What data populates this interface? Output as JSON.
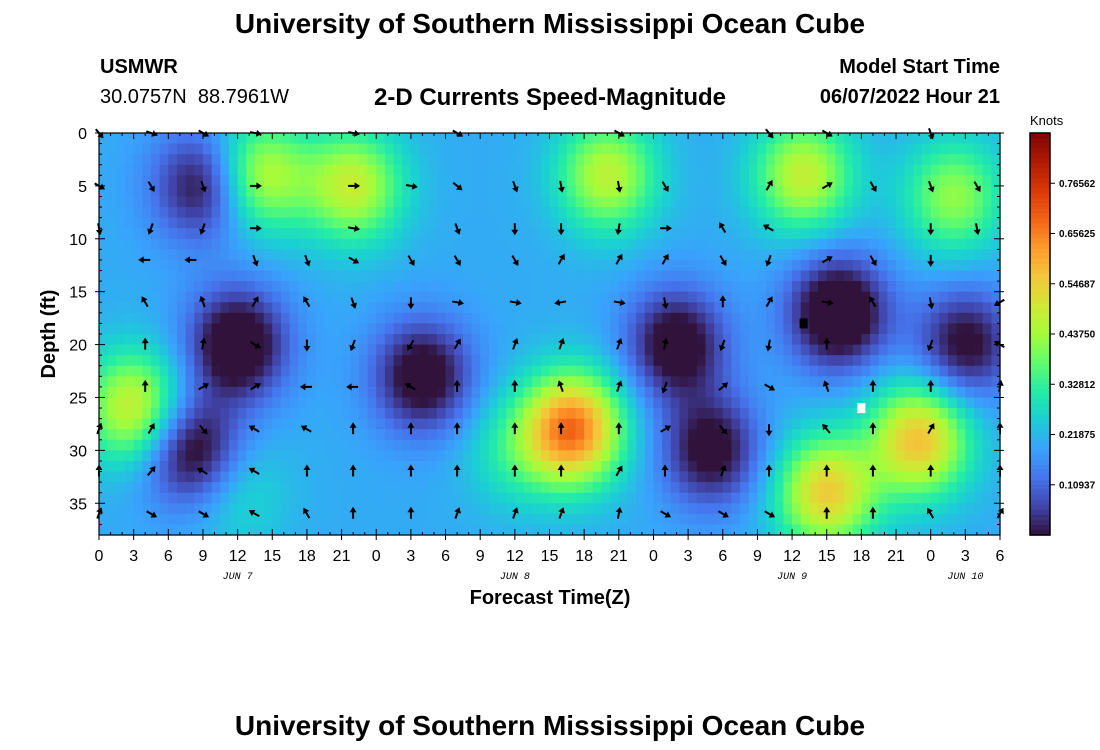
{
  "header": {
    "title": "University of Southern Mississippi Ocean Cube",
    "station": "USMWR",
    "coords": "30.0757N  88.7961W",
    "subtitle": "2-D Currents Speed-Magnitude",
    "model_label": "Model Start Time",
    "model_time": "06/07/2022 Hour 21"
  },
  "footer": {
    "title": "University of Southern Mississippi Ocean Cube"
  },
  "colors": {
    "scale": [
      "#30123b",
      "#4145ab",
      "#4675ed",
      "#39a2fc",
      "#1bcfd4",
      "#24eca6",
      "#61fc6c",
      "#a4fc3b",
      "#d1e834",
      "#f3c63a",
      "#fe9b2d",
      "#f36315",
      "#d93806",
      "#b11901",
      "#7a0402"
    ]
  },
  "chart_data": {
    "type": "heatmap",
    "title": "2-D Currents Speed-Magnitude",
    "xlabel": "Forecast Time(Z)",
    "ylabel": "Depth (ft)",
    "x_tick_labels": [
      "0",
      "3",
      "6",
      "9",
      "12",
      "15",
      "18",
      "21",
      "0",
      "3",
      "6",
      "9",
      "12",
      "15",
      "18",
      "21",
      "0",
      "3",
      "6",
      "9",
      "12",
      "15",
      "18",
      "21",
      "0",
      "3",
      "6"
    ],
    "x_date_labels": [
      {
        "label": "JUN 7",
        "tick_index": 4
      },
      {
        "label": "JUN 8",
        "tick_index": 12
      },
      {
        "label": "JUN 9",
        "tick_index": 20
      },
      {
        "label": "JUN 10",
        "tick_index": 25
      }
    ],
    "x_range_hours": [
      0,
      78
    ],
    "y_range_ft": [
      0,
      38
    ],
    "y_ticks": [
      0,
      5,
      10,
      15,
      20,
      25,
      30,
      35
    ],
    "colorbar": {
      "units": "Knots",
      "range": [
        0,
        0.875
      ],
      "tick_labels": [
        "0.76562",
        "0.65625",
        "0.54687",
        "0.43750",
        "0.32812",
        "0.21875",
        "0.10937"
      ],
      "tick_values": [
        0.765625,
        0.65625,
        0.546875,
        0.4375,
        0.328125,
        0.21875,
        0.109375
      ]
    },
    "speed_blobs": [
      {
        "hour": 3,
        "depth": 26,
        "speed": 0.5
      },
      {
        "hour": 22,
        "depth": 5,
        "speed": 0.48
      },
      {
        "hour": 14,
        "depth": 4,
        "speed": 0.47
      },
      {
        "hour": 44,
        "depth": 4,
        "speed": 0.47
      },
      {
        "hour": 41,
        "depth": 28,
        "speed": 0.67
      },
      {
        "hour": 36,
        "depth": 30,
        "speed": 0.3
      },
      {
        "hour": 61,
        "depth": 4,
        "speed": 0.48
      },
      {
        "hour": 71,
        "depth": 29,
        "speed": 0.57
      },
      {
        "hour": 63,
        "depth": 34,
        "speed": 0.55
      },
      {
        "hour": 74,
        "depth": 6,
        "speed": 0.42
      },
      {
        "hour": 12,
        "depth": 34,
        "speed": 0.28
      },
      {
        "hour": 50,
        "depth": 20,
        "speed": -0.05
      },
      {
        "hour": 12,
        "depth": 20,
        "speed": -0.08
      },
      {
        "hour": 64,
        "depth": 17,
        "speed": -0.1
      },
      {
        "hour": 8,
        "depth": 30,
        "speed": -0.05
      },
      {
        "hour": 28,
        "depth": 23,
        "speed": -0.05
      },
      {
        "hour": 53,
        "depth": 30,
        "speed": -0.03
      },
      {
        "hour": 9,
        "depth": 5,
        "speed": -0.02
      },
      {
        "hour": 75,
        "depth": 20,
        "speed": -0.02
      }
    ],
    "speed_background": 0.2,
    "arrows": [
      {
        "hour": 0,
        "depth": 0,
        "dir": 140
      },
      {
        "hour": 4.5,
        "depth": 0,
        "dir": 110
      },
      {
        "hour": 9,
        "depth": 0,
        "dir": 120
      },
      {
        "hour": 13.5,
        "depth": 0,
        "dir": 100
      },
      {
        "hour": 22,
        "depth": 0,
        "dir": 100
      },
      {
        "hour": 31,
        "depth": 0,
        "dir": 120
      },
      {
        "hour": 45,
        "depth": 0,
        "dir": 120
      },
      {
        "hour": 58,
        "depth": 0,
        "dir": 140
      },
      {
        "hour": 63,
        "depth": 0,
        "dir": 120
      },
      {
        "hour": 72,
        "depth": 0,
        "dir": 160
      },
      {
        "hour": 0,
        "depth": 5,
        "dir": 120
      },
      {
        "hour": 4.5,
        "depth": 5,
        "dir": 150
      },
      {
        "hour": 9,
        "depth": 5,
        "dir": 160
      },
      {
        "hour": 13.5,
        "depth": 5,
        "dir": 90
      },
      {
        "hour": 22,
        "depth": 5,
        "dir": 90
      },
      {
        "hour": 27,
        "depth": 5,
        "dir": 100
      },
      {
        "hour": 31,
        "depth": 5,
        "dir": 130
      },
      {
        "hour": 36,
        "depth": 5,
        "dir": 160
      },
      {
        "hour": 40,
        "depth": 5,
        "dir": 170
      },
      {
        "hour": 45,
        "depth": 5,
        "dir": 170
      },
      {
        "hour": 49,
        "depth": 5,
        "dir": 150
      },
      {
        "hour": 58,
        "depth": 5,
        "dir": 30
      },
      {
        "hour": 63,
        "depth": 5,
        "dir": 60
      },
      {
        "hour": 67,
        "depth": 5,
        "dir": 150
      },
      {
        "hour": 72,
        "depth": 5,
        "dir": 160
      },
      {
        "hour": 76,
        "depth": 5,
        "dir": 150
      },
      {
        "hour": 0,
        "depth": 9,
        "dir": 170
      },
      {
        "hour": 4.5,
        "depth": 9,
        "dir": 200
      },
      {
        "hour": 9,
        "depth": 9,
        "dir": 200
      },
      {
        "hour": 13.5,
        "depth": 9,
        "dir": 90
      },
      {
        "hour": 22,
        "depth": 9,
        "dir": 100
      },
      {
        "hour": 31,
        "depth": 9,
        "dir": 160
      },
      {
        "hour": 36,
        "depth": 9,
        "dir": 180
      },
      {
        "hour": 40,
        "depth": 9,
        "dir": 180
      },
      {
        "hour": 45,
        "depth": 9,
        "dir": 190
      },
      {
        "hour": 49,
        "depth": 9,
        "dir": 90
      },
      {
        "hour": 54,
        "depth": 9,
        "dir": 330
      },
      {
        "hour": 58,
        "depth": 9,
        "dir": 300
      },
      {
        "hour": 72,
        "depth": 9,
        "dir": 180
      },
      {
        "hour": 76,
        "depth": 9,
        "dir": 170
      },
      {
        "hour": 4,
        "depth": 12,
        "dir": 270
      },
      {
        "hour": 8,
        "depth": 12,
        "dir": 270
      },
      {
        "hour": 13.5,
        "depth": 12,
        "dir": 160
      },
      {
        "hour": 18,
        "depth": 12,
        "dir": 160
      },
      {
        "hour": 22,
        "depth": 12,
        "dir": 120
      },
      {
        "hour": 27,
        "depth": 12,
        "dir": 150
      },
      {
        "hour": 31,
        "depth": 12,
        "dir": 150
      },
      {
        "hour": 36,
        "depth": 12,
        "dir": 150
      },
      {
        "hour": 40,
        "depth": 12,
        "dir": 30
      },
      {
        "hour": 45,
        "depth": 12,
        "dir": 30
      },
      {
        "hour": 49,
        "depth": 12,
        "dir": 30
      },
      {
        "hour": 54,
        "depth": 12,
        "dir": 150
      },
      {
        "hour": 58,
        "depth": 12,
        "dir": 200
      },
      {
        "hour": 63,
        "depth": 12,
        "dir": 60
      },
      {
        "hour": 67,
        "depth": 12,
        "dir": 150
      },
      {
        "hour": 72,
        "depth": 12,
        "dir": 180
      },
      {
        "hour": 4,
        "depth": 16,
        "dir": 330
      },
      {
        "hour": 9,
        "depth": 16,
        "dir": 340
      },
      {
        "hour": 13.5,
        "depth": 16,
        "dir": 30
      },
      {
        "hour": 18,
        "depth": 16,
        "dir": 330
      },
      {
        "hour": 22,
        "depth": 16,
        "dir": 160
      },
      {
        "hour": 27,
        "depth": 16,
        "dir": 180
      },
      {
        "hour": 31,
        "depth": 16,
        "dir": 100
      },
      {
        "hour": 36,
        "depth": 16,
        "dir": 100
      },
      {
        "hour": 40,
        "depth": 16,
        "dir": 260
      },
      {
        "hour": 45,
        "depth": 16,
        "dir": 100
      },
      {
        "hour": 49,
        "depth": 16,
        "dir": 170
      },
      {
        "hour": 54,
        "depth": 16,
        "dir": 0
      },
      {
        "hour": 58,
        "depth": 16,
        "dir": 30
      },
      {
        "hour": 63,
        "depth": 16,
        "dir": 100
      },
      {
        "hour": 67,
        "depth": 16,
        "dir": 330
      },
      {
        "hour": 72,
        "depth": 16,
        "dir": 170
      },
      {
        "hour": 78,
        "depth": 16,
        "dir": 240
      },
      {
        "hour": 4,
        "depth": 20,
        "dir": 0
      },
      {
        "hour": 9,
        "depth": 20,
        "dir": 10
      },
      {
        "hour": 13.5,
        "depth": 20,
        "dir": 120
      },
      {
        "hour": 18,
        "depth": 20,
        "dir": 180
      },
      {
        "hour": 22,
        "depth": 20,
        "dir": 200
      },
      {
        "hour": 27,
        "depth": 20,
        "dir": 210
      },
      {
        "hour": 31,
        "depth": 20,
        "dir": 30
      },
      {
        "hour": 36,
        "depth": 20,
        "dir": 20
      },
      {
        "hour": 40,
        "depth": 20,
        "dir": 20
      },
      {
        "hour": 45,
        "depth": 20,
        "dir": 20
      },
      {
        "hour": 49,
        "depth": 20,
        "dir": 10
      },
      {
        "hour": 54,
        "depth": 20,
        "dir": 200
      },
      {
        "hour": 58,
        "depth": 20,
        "dir": 190
      },
      {
        "hour": 63,
        "depth": 20,
        "dir": 0
      },
      {
        "hour": 72,
        "depth": 20,
        "dir": 200
      },
      {
        "hour": 78,
        "depth": 20,
        "dir": 300
      },
      {
        "hour": 4,
        "depth": 24,
        "dir": 0
      },
      {
        "hour": 9,
        "depth": 24,
        "dir": 60
      },
      {
        "hour": 13.5,
        "depth": 24,
        "dir": 60
      },
      {
        "hour": 18,
        "depth": 24,
        "dir": 270
      },
      {
        "hour": 22,
        "depth": 24,
        "dir": 270
      },
      {
        "hour": 27,
        "depth": 24,
        "dir": 300
      },
      {
        "hour": 31,
        "depth": 24,
        "dir": 0
      },
      {
        "hour": 36,
        "depth": 24,
        "dir": 0
      },
      {
        "hour": 40,
        "depth": 24,
        "dir": 340
      },
      {
        "hour": 45,
        "depth": 24,
        "dir": 20
      },
      {
        "hour": 49,
        "depth": 24,
        "dir": 200
      },
      {
        "hour": 54,
        "depth": 24,
        "dir": 50
      },
      {
        "hour": 58,
        "depth": 24,
        "dir": 120
      },
      {
        "hour": 63,
        "depth": 24,
        "dir": 340
      },
      {
        "hour": 67,
        "depth": 24,
        "dir": 0
      },
      {
        "hour": 72,
        "depth": 24,
        "dir": 0
      },
      {
        "hour": 78,
        "depth": 24,
        "dir": 10
      },
      {
        "hour": 0,
        "depth": 28,
        "dir": 20
      },
      {
        "hour": 4.5,
        "depth": 28,
        "dir": 30
      },
      {
        "hour": 9,
        "depth": 28,
        "dir": 140
      },
      {
        "hour": 13.5,
        "depth": 28,
        "dir": 300
      },
      {
        "hour": 18,
        "depth": 28,
        "dir": 300
      },
      {
        "hour": 22,
        "depth": 28,
        "dir": 0
      },
      {
        "hour": 27,
        "depth": 28,
        "dir": 0
      },
      {
        "hour": 31,
        "depth": 28,
        "dir": 0
      },
      {
        "hour": 36,
        "depth": 28,
        "dir": 0
      },
      {
        "hour": 40,
        "depth": 28,
        "dir": 0
      },
      {
        "hour": 45,
        "depth": 28,
        "dir": 0
      },
      {
        "hour": 49,
        "depth": 28,
        "dir": 60
      },
      {
        "hour": 54,
        "depth": 28,
        "dir": 140
      },
      {
        "hour": 58,
        "depth": 28,
        "dir": 180
      },
      {
        "hour": 63,
        "depth": 28,
        "dir": 320
      },
      {
        "hour": 67,
        "depth": 28,
        "dir": 0
      },
      {
        "hour": 72,
        "depth": 28,
        "dir": 30
      },
      {
        "hour": 78,
        "depth": 28,
        "dir": 0
      },
      {
        "hour": 0,
        "depth": 32,
        "dir": 0
      },
      {
        "hour": 4.5,
        "depth": 32,
        "dir": 40
      },
      {
        "hour": 9,
        "depth": 32,
        "dir": 300
      },
      {
        "hour": 13.5,
        "depth": 32,
        "dir": 300
      },
      {
        "hour": 18,
        "depth": 32,
        "dir": 0
      },
      {
        "hour": 22,
        "depth": 32,
        "dir": 0
      },
      {
        "hour": 27,
        "depth": 32,
        "dir": 0
      },
      {
        "hour": 31,
        "depth": 32,
        "dir": 0
      },
      {
        "hour": 36,
        "depth": 32,
        "dir": 0
      },
      {
        "hour": 40,
        "depth": 32,
        "dir": 0
      },
      {
        "hour": 45,
        "depth": 32,
        "dir": 30
      },
      {
        "hour": 49,
        "depth": 32,
        "dir": 0
      },
      {
        "hour": 54,
        "depth": 32,
        "dir": 20
      },
      {
        "hour": 58,
        "depth": 32,
        "dir": 0
      },
      {
        "hour": 63,
        "depth": 32,
        "dir": 0
      },
      {
        "hour": 67,
        "depth": 32,
        "dir": 0
      },
      {
        "hour": 72,
        "depth": 32,
        "dir": 0
      },
      {
        "hour": 78,
        "depth": 32,
        "dir": 0
      },
      {
        "hour": 0,
        "depth": 36,
        "dir": 20
      },
      {
        "hour": 4.5,
        "depth": 36,
        "dir": 120
      },
      {
        "hour": 9,
        "depth": 36,
        "dir": 120
      },
      {
        "hour": 13.5,
        "depth": 36,
        "dir": 300
      },
      {
        "hour": 18,
        "depth": 36,
        "dir": 330
      },
      {
        "hour": 22,
        "depth": 36,
        "dir": 0
      },
      {
        "hour": 27,
        "depth": 36,
        "dir": 0
      },
      {
        "hour": 31,
        "depth": 36,
        "dir": 20
      },
      {
        "hour": 36,
        "depth": 36,
        "dir": 20
      },
      {
        "hour": 40,
        "depth": 36,
        "dir": 20
      },
      {
        "hour": 45,
        "depth": 36,
        "dir": 10
      },
      {
        "hour": 49,
        "depth": 36,
        "dir": 120
      },
      {
        "hour": 54,
        "depth": 36,
        "dir": 120
      },
      {
        "hour": 58,
        "depth": 36,
        "dir": 120
      },
      {
        "hour": 63,
        "depth": 36,
        "dir": 0
      },
      {
        "hour": 67,
        "depth": 36,
        "dir": 0
      },
      {
        "hour": 72,
        "depth": 36,
        "dir": 330
      },
      {
        "hour": 78,
        "depth": 36,
        "dir": 30
      }
    ],
    "markers": [
      {
        "hour": 61,
        "depth": 18,
        "color": "#000000"
      },
      {
        "hour": 66,
        "depth": 26,
        "color": "#ffffff"
      }
    ]
  }
}
